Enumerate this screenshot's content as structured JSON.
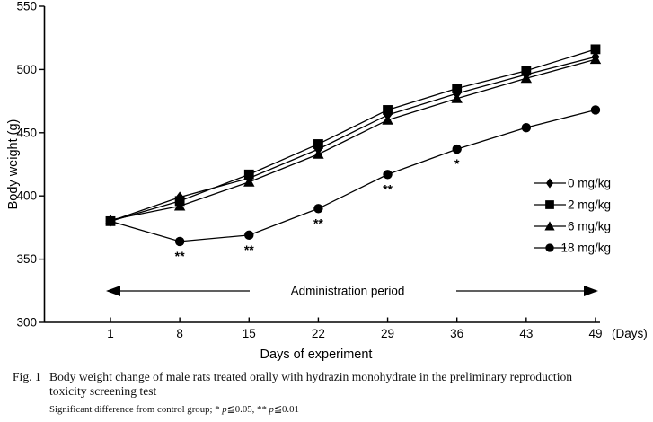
{
  "chart_data": {
    "type": "line",
    "xlabel": "Days of experiment",
    "x_unit_label": "(Days)",
    "ylabel": "Body weight (g)",
    "ylim": [
      300,
      550
    ],
    "yticks": [
      300,
      350,
      400,
      450,
      500,
      550
    ],
    "x_days": [
      1,
      8,
      15,
      22,
      29,
      36,
      43,
      49
    ],
    "series": [
      {
        "name": "0 mg/kg",
        "marker": "diamond",
        "values": [
          380,
          399,
          414,
          437,
          464,
          481,
          496,
          510
        ]
      },
      {
        "name": "2 mg/kg",
        "marker": "square",
        "values": [
          380,
          396,
          417,
          441,
          468,
          485,
          499,
          516
        ]
      },
      {
        "name": "6 mg/kg",
        "marker": "triangle",
        "values": [
          381,
          392,
          411,
          433,
          460,
          477,
          493,
          508
        ]
      },
      {
        "name": "18 mg/kg",
        "marker": "circle",
        "values": [
          380,
          364,
          369,
          390,
          417,
          437,
          454,
          468
        ]
      }
    ],
    "significance_markers": [
      {
        "series": "18 mg/kg",
        "day": 8,
        "label": "**"
      },
      {
        "series": "18 mg/kg",
        "day": 15,
        "label": "**"
      },
      {
        "series": "18 mg/kg",
        "day": 22,
        "label": "**"
      },
      {
        "series": "18 mg/kg",
        "day": 29,
        "label": "**"
      },
      {
        "series": "18 mg/kg",
        "day": 36,
        "label": "*"
      }
    ],
    "annotation": "Administration period",
    "legend_position": "right-middle",
    "grid": false,
    "line_color": "#000000",
    "background": "#ffffff"
  },
  "caption": {
    "label": "Fig. 1",
    "line1": "Body weight change of male rats treated orally with hydrazin monohydrate in the preliminary reproduction",
    "line2": "toxicity screening test"
  },
  "footnote": {
    "prefix": "Significant difference from control group; * ",
    "p1": "p",
    "mid": "≦0.05, ** ",
    "p2": "p",
    "end": "≦0.01"
  }
}
